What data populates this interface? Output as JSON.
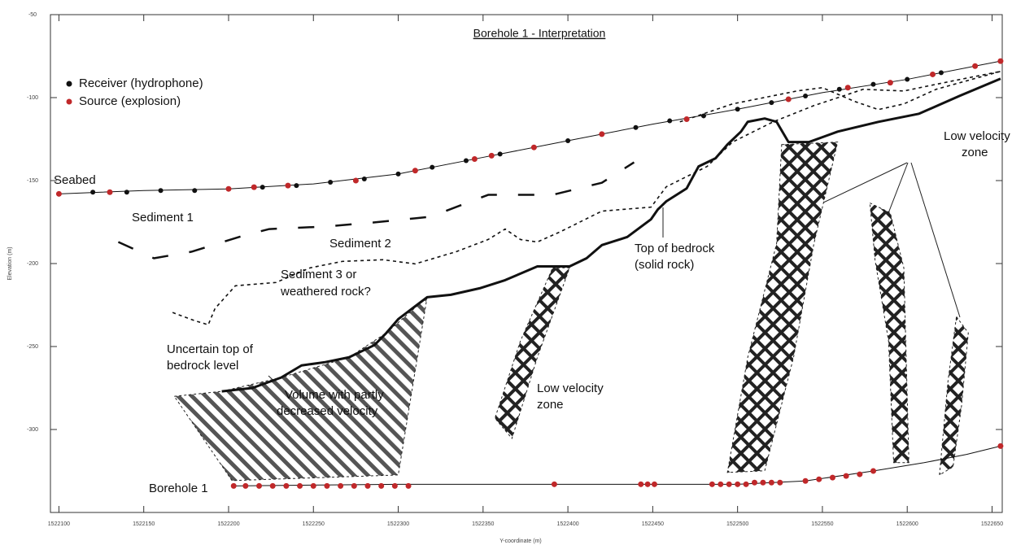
{
  "chart_data": {
    "type": "section",
    "title": "Borehole 1 - Interpretation",
    "xlabel": "Y-coordinate (m)",
    "ylabel": "Elevation (m)",
    "xlim": [
      1522095,
      1522656
    ],
    "ylim": [
      -350,
      -50
    ],
    "xticks": [
      1522100,
      1522150,
      1522200,
      1522250,
      1522300,
      1522350,
      1522400,
      1522450,
      1522500,
      1522550,
      1522600,
      1522650
    ],
    "yticks": [
      -50,
      -100,
      -150,
      -200,
      -250,
      -300
    ],
    "lines": [
      {
        "color": "#111111",
        "width": 1,
        "dash": "none",
        "x": [
          1522100,
          1522150,
          1522200,
          1522250,
          1522300,
          1522350,
          1522400,
          1522450,
          1522500,
          1522550,
          1522600,
          1522655
        ],
        "y": [
          -158,
          -156,
          -155,
          -152,
          -146,
          -136,
          -126,
          -116,
          -107,
          -97,
          -89,
          -78
        ]
      },
      {
        "color": "#111111",
        "width": 1,
        "dash": "none",
        "x": [
          1522203,
          1522300,
          1522400,
          1522500,
          1522540,
          1522580,
          1522610,
          1522635,
          1522655
        ],
        "y": [
          -334,
          -333,
          -333,
          -333,
          -331,
          -325,
          -320,
          -315,
          -310
        ]
      },
      {
        "color": "#111111",
        "width": 3,
        "dash": "none",
        "x": [
          1522196,
          1522214,
          1522231,
          1522243,
          1522257,
          1522271,
          1522286,
          1522293,
          1522300,
          1522317,
          1522331,
          1522348,
          1522363,
          1522382,
          1522401,
          1522411,
          1522420,
          1522435,
          1522449,
          1522453,
          1522458,
          1522470,
          1522477,
          1522487,
          1522494,
          1522502,
          1522506,
          1522516,
          1522523,
          1522530,
          1522542,
          1522559,
          1522583,
          1522607,
          1522631,
          1522655
        ],
        "y": [
          -277,
          -275,
          -268.7,
          -261.4,
          -259.4,
          -256.5,
          -249.1,
          -241.8,
          -233.5,
          -220.3,
          -218.8,
          -214.9,
          -210,
          -201.7,
          -201.7,
          -196.8,
          -188.9,
          -184,
          -173.3,
          -167.4,
          -162.5,
          -154.7,
          -141.5,
          -136.6,
          -128.3,
          -120.5,
          -114.6,
          -112.6,
          -114.6,
          -126.8,
          -126.8,
          -120.5,
          -114.6,
          -109.7,
          -98.9,
          -88.6
        ]
      },
      {
        "color": "#111111",
        "width": 2.5,
        "dash": "20 26",
        "x": [
          1522135,
          1522156,
          1522178,
          1522209,
          1522224,
          1522257,
          1522286,
          1522319,
          1522353,
          1522391,
          1522420,
          1522439
        ],
        "y": [
          -187,
          -196.8,
          -192.9,
          -183.1,
          -179.2,
          -177.7,
          -175.2,
          -171.8,
          -158.6,
          -158.6,
          -151.3,
          -139
        ]
      },
      {
        "color": "#111111",
        "width": 1.6,
        "dash": "4 4",
        "x": [
          1522167,
          1522180,
          1522188,
          1522192,
          1522204,
          1522228,
          1522248,
          1522267,
          1522291,
          1522310,
          1522334,
          1522353,
          1522363,
          1522372,
          1522382,
          1522396,
          1522420,
          1522449,
          1522458,
          1522482,
          1522497,
          1522521,
          1522545,
          1522574,
          1522598,
          1522626,
          1522655
        ],
        "y": [
          -229.5,
          -234.4,
          -236.9,
          -227.1,
          -213.4,
          -211.4,
          -202.6,
          -198.7,
          -197.7,
          -200.2,
          -192.9,
          -185.5,
          -179.2,
          -185.5,
          -187,
          -180.6,
          -168.4,
          -166,
          -153.7,
          -141.5,
          -126.8,
          -114.6,
          -104.8,
          -95,
          -96,
          -90.1,
          -84.2
        ]
      },
      {
        "color": "#111111",
        "width": 1.6,
        "dash": "4 4",
        "x": [
          1522466,
          1522497,
          1522535,
          1522550,
          1522569,
          1522583,
          1522598,
          1522617,
          1522655
        ],
        "y": [
          -114.6,
          -103.8,
          -96,
          -94,
          -102.3,
          -107.2,
          -103.8,
          -95,
          -84.2
        ]
      }
    ],
    "zones": [
      {
        "fill": "crosshatch",
        "x": [
          1522526,
          1522559,
          1522545,
          1522533,
          1522516,
          1522494,
          1522506,
          1522523
        ],
        "y": [
          -128.3,
          -126.8,
          -188,
          -256.5,
          -324.9,
          -325.9,
          -256.5,
          -188
        ]
      },
      {
        "fill": "crosshatch",
        "x": [
          1522391,
          1522401,
          1522382,
          1522367,
          1522357,
          1522372
        ],
        "y": [
          -202.6,
          -202.6,
          -256.5,
          -305.4,
          -293.2,
          -246.7
        ]
      },
      {
        "fill": "crosshatch",
        "x": [
          1522578,
          1522590,
          1522598,
          1522601,
          1522592,
          1522589,
          1522581
        ],
        "y": [
          -163.5,
          -169.4,
          -202.6,
          -320,
          -320,
          -246.7,
          -197.7
        ]
      },
      {
        "fill": "crosshatch",
        "x": [
          1522629,
          1522636,
          1522632,
          1522627,
          1522619,
          1522624
        ],
        "y": [
          -232,
          -241.8,
          -285.8,
          -322.5,
          -327.4,
          -271.1
        ]
      },
      {
        "fill": "stripes",
        "x": [
          1522168,
          1522196,
          1522231,
          1522271,
          1522293,
          1522317,
          1522300,
          1522202
        ],
        "y": [
          -280,
          -277,
          -268.7,
          -256.5,
          -241.8,
          -220.3,
          -327.4,
          -330.8
        ]
      }
    ],
    "series": [
      {
        "name": "Receiver (hydrophone)",
        "color": "#111111",
        "x": [
          1522100,
          1522120,
          1522140,
          1522160,
          1522180,
          1522200,
          1522220,
          1522240,
          1522260,
          1522280,
          1522300,
          1522320,
          1522340,
          1522360,
          1522380,
          1522400,
          1522420,
          1522440,
          1522460,
          1522480,
          1522500,
          1522520,
          1522540,
          1522560,
          1522580,
          1522600,
          1522620,
          1522640,
          1522655
        ],
        "y": [
          -158,
          -157,
          -157,
          -156,
          -156,
          -155,
          -154,
          -153,
          -151,
          -149,
          -146,
          -142,
          -138,
          -134,
          -130,
          -126,
          -122,
          -118,
          -114,
          -111,
          -107,
          -103,
          -99,
          -95,
          -92,
          -89,
          -85,
          -81,
          -78
        ]
      },
      {
        "name": "Source (explosion)",
        "color": "#c0282a",
        "x": [
          1522100,
          1522130,
          1522200,
          1522215,
          1522235,
          1522275,
          1522310,
          1522345,
          1522355,
          1522380,
          1522420,
          1522470,
          1522530,
          1522565,
          1522590,
          1522615,
          1522640,
          1522655,
          1522203,
          1522210,
          1522218,
          1522226,
          1522234,
          1522242,
          1522250,
          1522258,
          1522266,
          1522274,
          1522282,
          1522290,
          1522298,
          1522306,
          1522392,
          1522443,
          1522447,
          1522451,
          1522485,
          1522490,
          1522495,
          1522500,
          1522505,
          1522510,
          1522515,
          1522520,
          1522525,
          1522540,
          1522548,
          1522556,
          1522564,
          1522572,
          1522580,
          1522655
        ],
        "y": [
          -158,
          -157,
          -155,
          -154,
          -153,
          -150,
          -144,
          -137,
          -135,
          -130,
          -122,
          -113,
          -101,
          -94,
          -91,
          -86,
          -81,
          -78,
          -334,
          -334,
          -334,
          -334,
          -334,
          -334,
          -334,
          -334,
          -334,
          -334,
          -334,
          -334,
          -334,
          -334,
          -333,
          -333,
          -333,
          -333,
          -333,
          -333,
          -333,
          -333,
          -333,
          -332,
          -332,
          -332,
          -332,
          -331,
          -330,
          -329,
          -328,
          -327,
          -325,
          -310
        ]
      }
    ],
    "annotations": [
      "Seabed",
      "Sediment 1",
      "Sediment 2",
      "Sediment 3 or",
      "weathered rock?",
      "Uncertain top of",
      "bedrock level",
      "Volume with partly",
      "decreased velocity",
      "Low velocity",
      "zone",
      "Top of bedrock",
      "(solid rock)",
      "Low velocity",
      "zone",
      "Borehole 1"
    ]
  }
}
